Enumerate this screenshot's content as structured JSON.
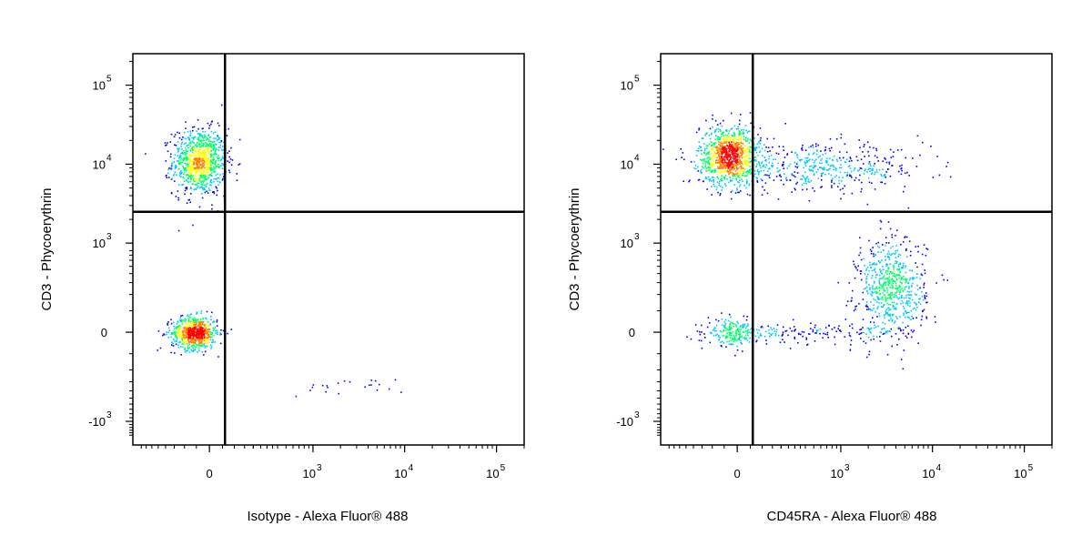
{
  "chart_data": [
    {
      "type": "scatter",
      "subtype": "flow-cytometry-density-dot-plot",
      "title": "",
      "xlabel": "Isotype - Alexa Fluor® 488",
      "ylabel": "CD3 - Phycoerythrin",
      "x_scale": "biexponential",
      "y_scale": "biexponential",
      "xlim": [
        -500,
        200000
      ],
      "ylim": [
        -2000,
        250000
      ],
      "x_ticks": [
        {
          "value": 0,
          "base": "0",
          "exp": ""
        },
        {
          "value": 1000,
          "base": "10",
          "exp": "3"
        },
        {
          "value": 10000,
          "base": "10",
          "exp": "4"
        },
        {
          "value": 100000,
          "base": "10",
          "exp": "5"
        }
      ],
      "y_ticks": [
        {
          "value": -1000,
          "base": "-10",
          "exp": "3"
        },
        {
          "value": 0,
          "base": "0",
          "exp": ""
        },
        {
          "value": 1000,
          "base": "10",
          "exp": "3"
        },
        {
          "value": 10000,
          "base": "10",
          "exp": "4"
        },
        {
          "value": 100000,
          "base": "10",
          "exp": "5"
        }
      ],
      "quadrant_gate": {
        "x": 60,
        "y": 2500
      },
      "color_scale": [
        "#0000ff",
        "#00c8ff",
        "#00ff66",
        "#ffff00",
        "#ff8000",
        "#ff0000"
      ],
      "populations": [
        {
          "x": -40,
          "y": 11000,
          "sx": 0.14,
          "sy": 0.2,
          "n": 900
        },
        {
          "x": -60,
          "y": 0,
          "sx": 0.12,
          "sy": 0.1,
          "n": 700
        },
        {
          "x": 2200,
          "y": -350,
          "sx": 0.32,
          "sy": 0.05,
          "n": 22
        }
      ],
      "grid": false,
      "legend": "none"
    },
    {
      "type": "scatter",
      "subtype": "flow-cytometry-density-dot-plot",
      "title": "",
      "xlabel": "CD45RA - Alexa Fluor® 488",
      "ylabel": "CD3 - Phycoerythrin",
      "x_scale": "biexponential",
      "y_scale": "biexponential",
      "xlim": [
        -500,
        200000
      ],
      "ylim": [
        -2000,
        250000
      ],
      "x_ticks": [
        {
          "value": 0,
          "base": "0",
          "exp": ""
        },
        {
          "value": 1000,
          "base": "10",
          "exp": "3"
        },
        {
          "value": 10000,
          "base": "10",
          "exp": "4"
        },
        {
          "value": 100000,
          "base": "10",
          "exp": "5"
        }
      ],
      "y_ticks": [
        {
          "value": -1000,
          "base": "-10",
          "exp": "3"
        },
        {
          "value": 0,
          "base": "0",
          "exp": ""
        },
        {
          "value": 1000,
          "base": "10",
          "exp": "3"
        },
        {
          "value": 10000,
          "base": "10",
          "exp": "4"
        },
        {
          "value": 100000,
          "base": "10",
          "exp": "5"
        }
      ],
      "quadrant_gate": {
        "x": 60,
        "y": 2500
      },
      "color_scale": [
        "#0000ff",
        "#00c8ff",
        "#00ff66",
        "#ffff00",
        "#ff8000",
        "#ff0000"
      ],
      "populations": [
        {
          "x": -30,
          "y": 13000,
          "sx": 0.16,
          "sy": 0.18,
          "n": 1000
        },
        {
          "x": 600,
          "y": 9000,
          "sx": 0.55,
          "sy": 0.14,
          "n": 450
        },
        {
          "x": -20,
          "y": 0,
          "sx": 0.13,
          "sy": 0.08,
          "n": 200
        },
        {
          "x": 400,
          "y": 0,
          "sx": 0.45,
          "sy": 0.06,
          "n": 140
        },
        {
          "x": 3500,
          "y": 250,
          "sx": 0.18,
          "sy": 0.3,
          "n": 650
        }
      ],
      "grid": false,
      "legend": "none"
    }
  ]
}
